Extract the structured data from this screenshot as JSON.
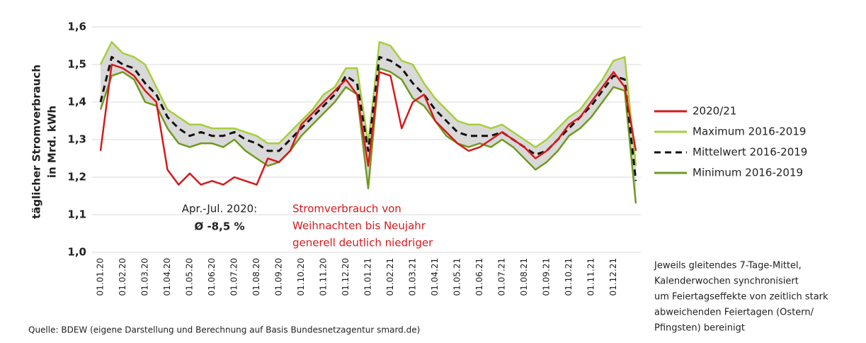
{
  "chart_data": {
    "type": "line",
    "y_axis_label": [
      "täglicher Stromverbrauch",
      "in Mrd. kWh"
    ],
    "categories": [
      "01.01.20",
      null,
      "01.02.20",
      null,
      "01.03.20",
      null,
      "01.04.20",
      null,
      "01.05.20",
      null,
      "01.06.20",
      null,
      "01.07.20",
      null,
      "01.08.20",
      null,
      "01.09.20",
      null,
      "01.10.20",
      null,
      "01.11.20",
      null,
      "01.12.20",
      null,
      "01.01.21",
      null,
      "01.02.21",
      null,
      "01.03.21",
      null,
      "01.04.21",
      null,
      "01.05.21",
      null,
      "01.06.21",
      null,
      "01.07.21",
      null,
      "01.08.21",
      null,
      "01.09.21",
      null,
      "01.10.21",
      null,
      "01.11.21",
      null,
      "01.12.21",
      null,
      null
    ],
    "series": [
      {
        "name": "2020/21",
        "color": "#d7191c",
        "style": "solid",
        "values": [
          1.27,
          1.5,
          1.49,
          1.47,
          1.43,
          1.4,
          1.22,
          1.18,
          1.21,
          1.18,
          1.19,
          1.18,
          1.2,
          1.19,
          1.18,
          1.25,
          1.24,
          1.27,
          1.34,
          1.37,
          1.4,
          1.43,
          1.46,
          1.42,
          1.23,
          1.48,
          1.47,
          1.33,
          1.4,
          1.42,
          1.35,
          1.32,
          1.29,
          1.27,
          1.28,
          1.3,
          1.32,
          1.3,
          1.28,
          1.25,
          1.27,
          1.3,
          1.34,
          1.36,
          1.4,
          1.44,
          1.48,
          1.44,
          1.27
        ]
      },
      {
        "name": "Maximum 2016-2019",
        "color": "#a6cf3b",
        "style": "solid",
        "values": [
          1.5,
          1.56,
          1.53,
          1.52,
          1.5,
          1.44,
          1.38,
          1.36,
          1.34,
          1.34,
          1.33,
          1.33,
          1.33,
          1.32,
          1.31,
          1.29,
          1.29,
          1.32,
          1.35,
          1.38,
          1.42,
          1.44,
          1.49,
          1.49,
          1.29,
          1.56,
          1.55,
          1.51,
          1.5,
          1.45,
          1.41,
          1.38,
          1.35,
          1.34,
          1.34,
          1.33,
          1.34,
          1.32,
          1.3,
          1.28,
          1.3,
          1.33,
          1.36,
          1.38,
          1.42,
          1.46,
          1.51,
          1.52,
          1.23
        ]
      },
      {
        "name": "Mittelwert 2016-2019",
        "color": "#111111",
        "style": "dashed",
        "values": [
          1.4,
          1.52,
          1.5,
          1.49,
          1.45,
          1.42,
          1.36,
          1.33,
          1.31,
          1.32,
          1.31,
          1.31,
          1.32,
          1.3,
          1.29,
          1.27,
          1.27,
          1.3,
          1.33,
          1.36,
          1.39,
          1.42,
          1.47,
          1.45,
          1.27,
          1.52,
          1.51,
          1.49,
          1.45,
          1.42,
          1.38,
          1.35,
          1.32,
          1.31,
          1.31,
          1.31,
          1.32,
          1.3,
          1.28,
          1.26,
          1.27,
          1.3,
          1.33,
          1.36,
          1.39,
          1.43,
          1.47,
          1.46,
          1.19
        ]
      },
      {
        "name": "Minimum 2016-2019",
        "color": "#6f9a1f",
        "style": "solid",
        "values": [
          1.38,
          1.47,
          1.48,
          1.46,
          1.4,
          1.39,
          1.33,
          1.29,
          1.28,
          1.29,
          1.29,
          1.28,
          1.3,
          1.27,
          1.25,
          1.23,
          1.24,
          1.27,
          1.31,
          1.34,
          1.37,
          1.4,
          1.44,
          1.42,
          1.17,
          1.49,
          1.48,
          1.46,
          1.41,
          1.39,
          1.35,
          1.31,
          1.29,
          1.28,
          1.29,
          1.28,
          1.3,
          1.28,
          1.25,
          1.22,
          1.24,
          1.27,
          1.31,
          1.33,
          1.36,
          1.4,
          1.44,
          1.43,
          1.13
        ]
      }
    ],
    "band_color": "#d9d9d9",
    "ylim": [
      1.0,
      1.6
    ],
    "yticks": [
      {
        "value": 1.0,
        "label": "1,0"
      },
      {
        "value": 1.1,
        "label": "1,1"
      },
      {
        "value": 1.2,
        "label": "1,2"
      },
      {
        "value": 1.3,
        "label": "1,3"
      },
      {
        "value": 1.4,
        "label": "1,4"
      },
      {
        "value": 1.5,
        "label": "1,5"
      },
      {
        "value": 1.6,
        "label": "1,6"
      }
    ],
    "grid": true,
    "legend": "right",
    "annotations": {
      "lockdown": [
        "Apr.-Jul. 2020:",
        "Ø -8,5 %"
      ],
      "christmas": [
        "Stromverbrauch von",
        "Weihnachten bis Neujahr",
        "generell deutlich niedriger"
      ],
      "note": [
        "Jeweils gleitendes 7-Tage-Mittel,",
        "Kalenderwochen synchronisiert",
        "um Feiertagseffekte von zeitlich stark",
        "abweichenden Feiertagen (Ostern/",
        "Pfingsten) bereinigt"
      ]
    },
    "source": "Quelle: BDEW (eigene Darstellung und Berechnung auf Basis Bundesnetzagentur smard.de)"
  }
}
